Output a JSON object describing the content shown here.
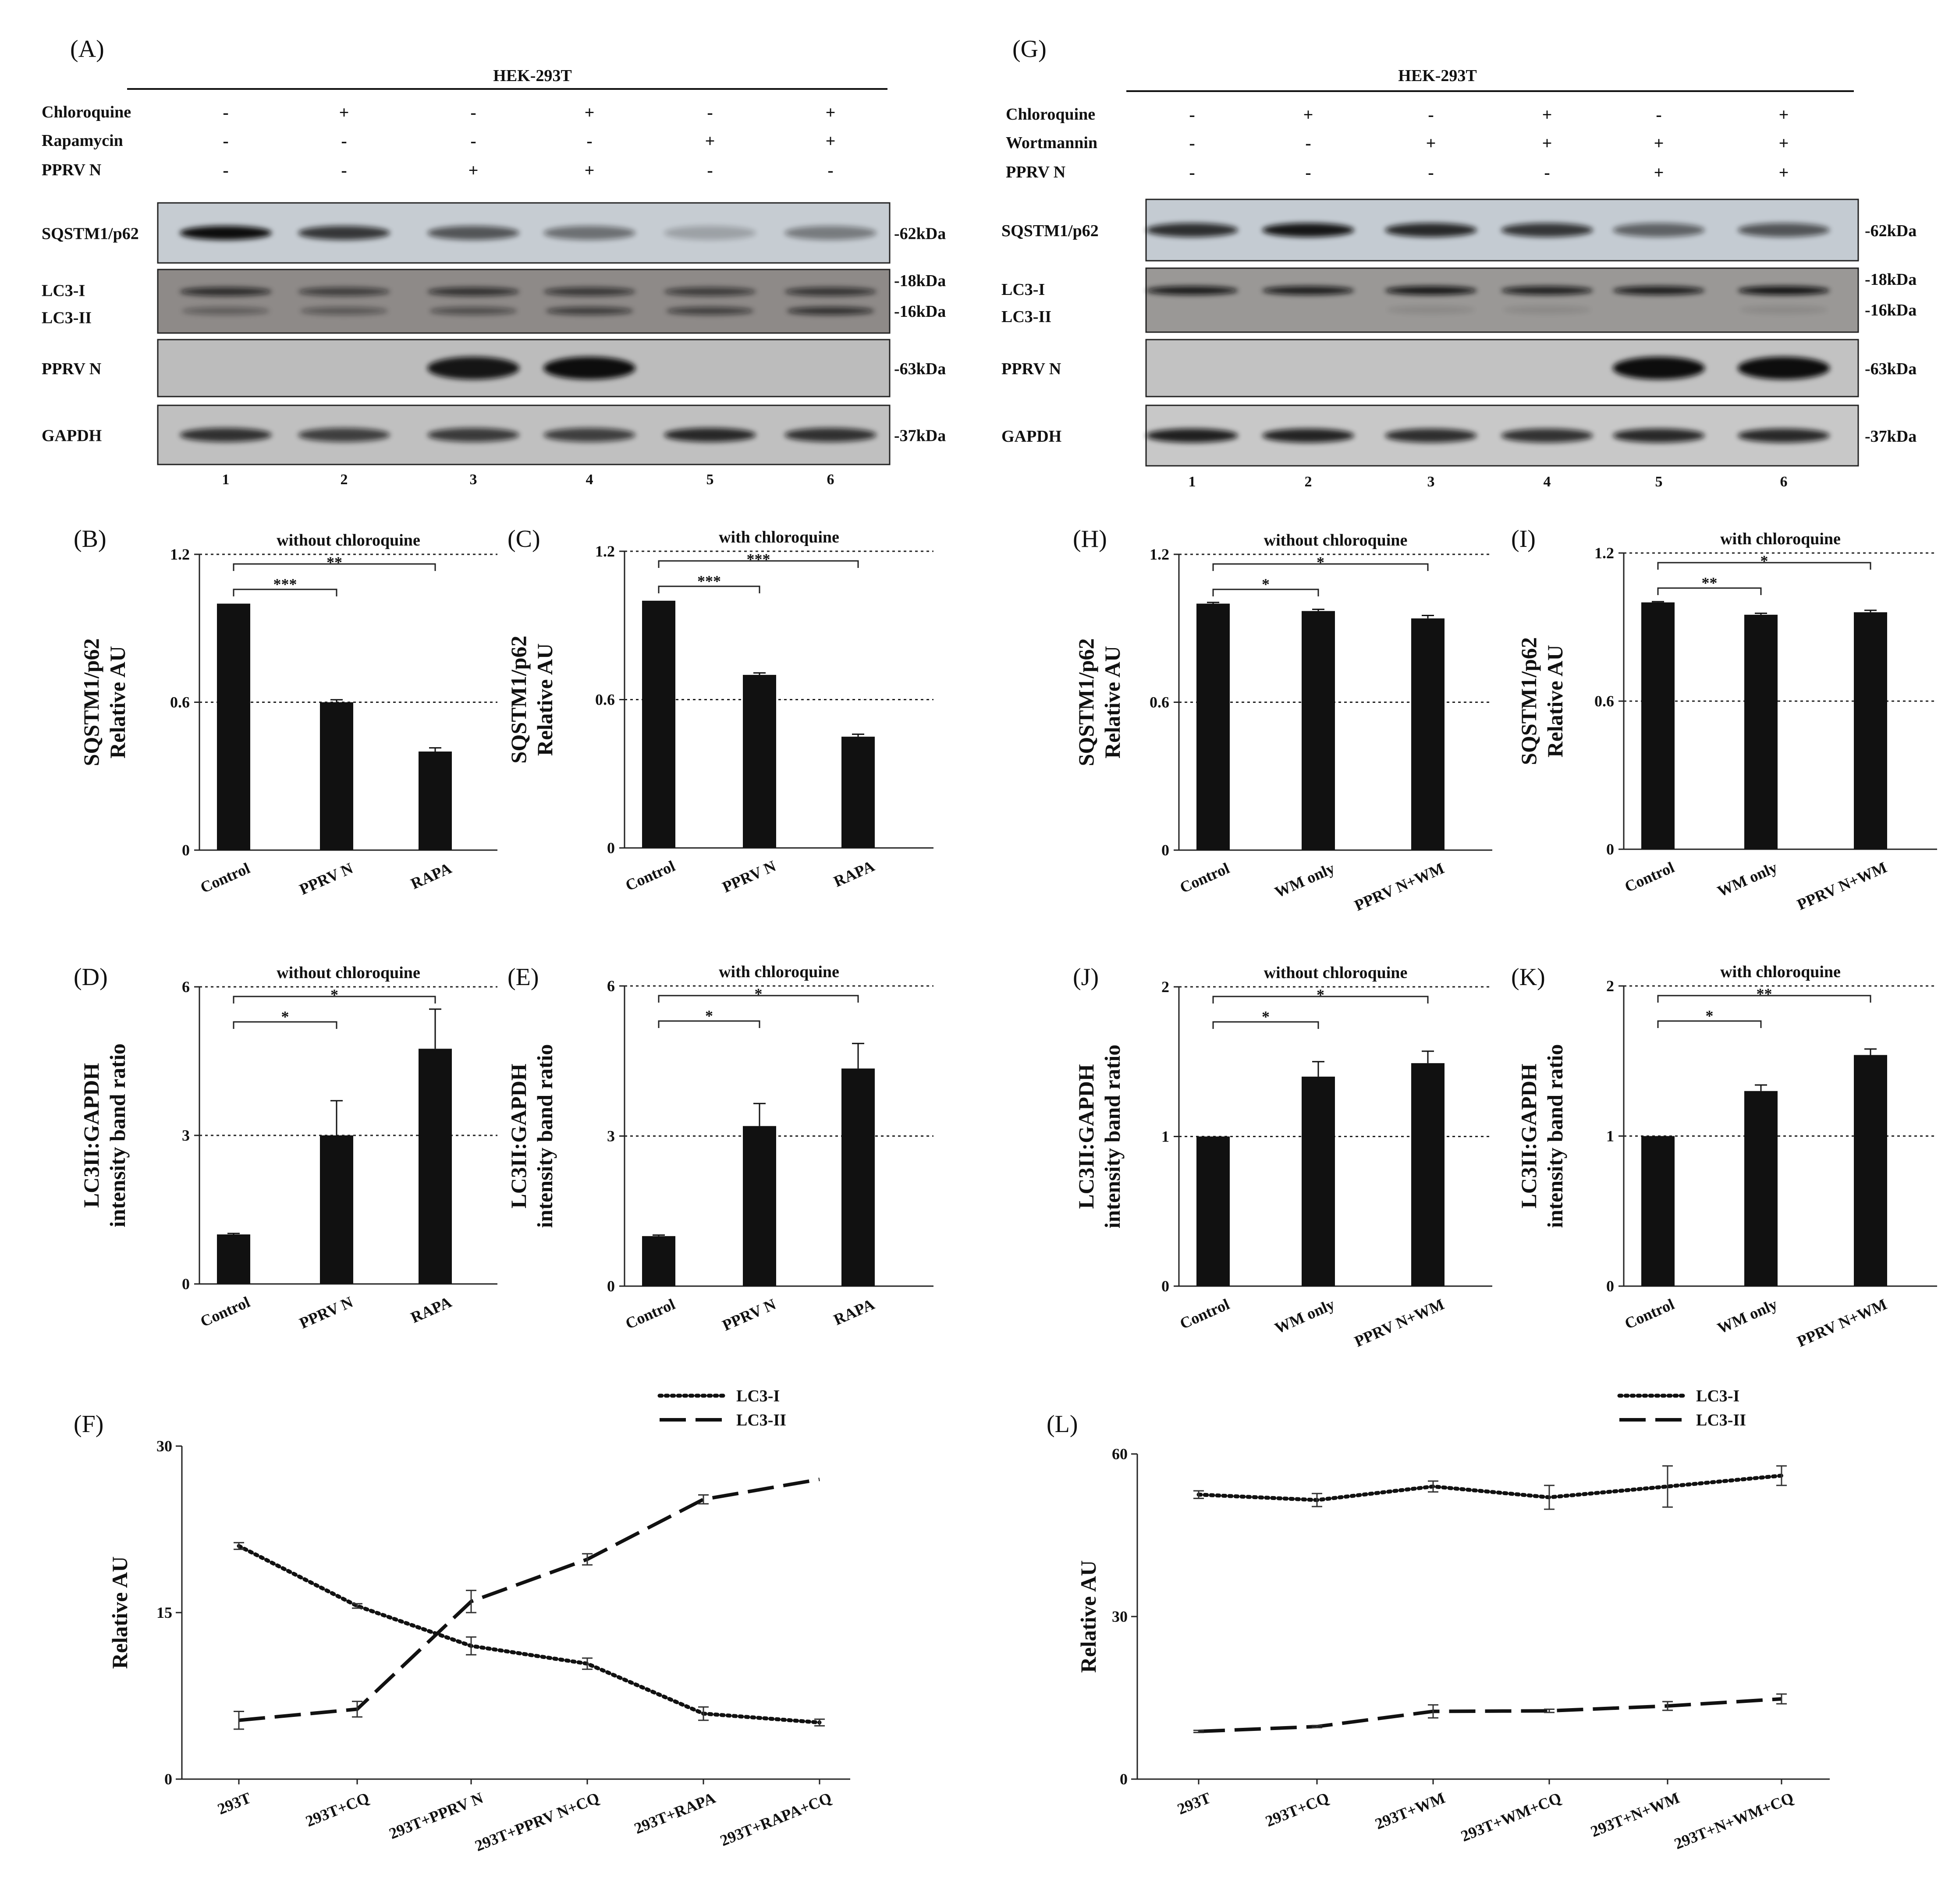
{
  "panels": {
    "A": "(A)",
    "B": "(B)",
    "C": "(C)",
    "D": "(D)",
    "E": "(E)",
    "F": "(F)",
    "G": "(G)",
    "H": "(H)",
    "I": "(I)",
    "J": "(J)",
    "K": "(K)",
    "L": "(L)"
  },
  "blot_left": {
    "cell_line": "HEK-293T",
    "treatments": [
      {
        "label": "Chloroquine",
        "signs": [
          "-",
          "+",
          "-",
          "+",
          "-",
          "+"
        ]
      },
      {
        "label": "Rapamycin",
        "signs": [
          "-",
          "-",
          "-",
          "-",
          "+",
          "+"
        ]
      },
      {
        "label": "PPRV N",
        "signs": [
          "-",
          "-",
          "+",
          "+",
          "-",
          "-"
        ]
      }
    ],
    "rows": [
      {
        "labels": [
          "SQSTM1/p62"
        ],
        "sizes": [
          "-62kDa"
        ],
        "bands": [
          1.0,
          0.78,
          0.62,
          0.48,
          0.22,
          0.42
        ],
        "tint": "#c6ccd2"
      },
      {
        "labels": [
          "LC3-I",
          "LC3-II"
        ],
        "sizes": [
          "-18kDa",
          "-16kDa"
        ],
        "bands": [
          0.75,
          0.6,
          0.7,
          0.65,
          0.62,
          0.68
        ],
        "bands2": [
          0.35,
          0.4,
          0.48,
          0.62,
          0.6,
          0.72
        ],
        "tint": "#8e8a88"
      },
      {
        "labels": [
          "PPRV N"
        ],
        "sizes": [
          "-63kDa"
        ],
        "bands": [
          0,
          0,
          0.95,
          1.0,
          0,
          0
        ],
        "tint": "#bcbcbc"
      },
      {
        "labels": [
          "GAPDH"
        ],
        "sizes": [
          "-37kDa"
        ],
        "bands": [
          0.8,
          0.72,
          0.75,
          0.72,
          0.85,
          0.8
        ],
        "tint": "#c0c0c0"
      }
    ],
    "lanes": [
      "1",
      "2",
      "3",
      "4",
      "5",
      "6"
    ]
  },
  "blot_right": {
    "cell_line": "HEK-293T",
    "treatments": [
      {
        "label": "Chloroquine",
        "signs": [
          "-",
          "+",
          "-",
          "+",
          "-",
          "+"
        ]
      },
      {
        "label": "Wortmannin",
        "signs": [
          "-",
          "-",
          "+",
          "+",
          "+",
          "+"
        ]
      },
      {
        "label": "PPRV N",
        "signs": [
          "-",
          "-",
          "-",
          "-",
          "+",
          "+"
        ]
      }
    ],
    "rows": [
      {
        "labels": [
          "SQSTM1/p62"
        ],
        "sizes": [
          "-62kDa"
        ],
        "bands": [
          0.82,
          0.95,
          0.85,
          0.78,
          0.55,
          0.62
        ],
        "tint": "#c4cbd2"
      },
      {
        "labels": [
          "LC3-I",
          "LC3-II"
        ],
        "sizes": [
          "-18kDa",
          "-16kDa"
        ],
        "bands": [
          0.9,
          0.88,
          0.92,
          0.85,
          0.88,
          0.95
        ],
        "bands2": [
          0,
          0,
          0.1,
          0.1,
          0,
          0.1
        ],
        "tint": "#9a9896"
      },
      {
        "labels": [
          "PPRV N"
        ],
        "sizes": [
          "-63kDa"
        ],
        "bands": [
          0,
          0,
          0,
          0,
          1.0,
          1.0
        ],
        "tint": "#c2c2c2"
      },
      {
        "labels": [
          "GAPDH"
        ],
        "sizes": [
          "-37kDa"
        ],
        "bands": [
          0.9,
          0.88,
          0.82,
          0.8,
          0.85,
          0.85
        ],
        "tint": "#c8c8c8"
      }
    ],
    "lanes": [
      "1",
      "2",
      "3",
      "4",
      "5",
      "6"
    ]
  },
  "chart_data": [
    {
      "id": "B",
      "type": "bar",
      "title": "without chloroquine",
      "ylabel": [
        "SQSTM1/p62",
        "Relative AU"
      ],
      "ylim": [
        0,
        1.2
      ],
      "yticks": [
        "0",
        "0.6",
        "1.2"
      ],
      "ref_lines": [
        0.6,
        1.2
      ],
      "categories": [
        "Control",
        "PPRV N",
        "RAPA"
      ],
      "values": [
        1.0,
        0.6,
        0.4
      ],
      "errors": [
        0,
        0.01,
        0.015
      ],
      "significance": [
        {
          "from": 0,
          "to": 1,
          "label": "***"
        },
        {
          "from": 0,
          "to": 2,
          "label": "**"
        }
      ]
    },
    {
      "id": "C",
      "type": "bar",
      "title": "with chloroquine",
      "ylabel": [
        "SQSTM1/p62",
        "Relative AU"
      ],
      "ylim": [
        0,
        1.2
      ],
      "yticks": [
        "0",
        "0.6",
        "1.2"
      ],
      "ref_lines": [
        0.6,
        1.2
      ],
      "categories": [
        "Control",
        "PPRV N",
        "RAPA"
      ],
      "values": [
        1.0,
        0.7,
        0.45
      ],
      "errors": [
        0,
        0.008,
        0.01
      ],
      "significance": [
        {
          "from": 0,
          "to": 1,
          "label": "***"
        },
        {
          "from": 0,
          "to": 2,
          "label": "***"
        }
      ]
    },
    {
      "id": "D",
      "type": "bar",
      "title": "without chloroquine",
      "ylabel": [
        "LC3II:GAPDH",
        "intensity band ratio"
      ],
      "ylim": [
        0,
        6
      ],
      "yticks": [
        "0",
        "3",
        "6"
      ],
      "ref_lines": [
        3,
        6
      ],
      "categories": [
        "Control",
        "PPRV N",
        "RAPA"
      ],
      "values": [
        1.0,
        3.0,
        4.75
      ],
      "errors": [
        0.02,
        0.7,
        0.8
      ],
      "significance": [
        {
          "from": 0,
          "to": 1,
          "label": "*"
        },
        {
          "from": 0,
          "to": 2,
          "label": "*"
        }
      ]
    },
    {
      "id": "E",
      "type": "bar",
      "title": "with chloroquine",
      "ylabel": [
        "LC3II:GAPDH",
        "intensity band ratio"
      ],
      "ylim": [
        0,
        6
      ],
      "yticks": [
        "0",
        "3",
        "6"
      ],
      "ref_lines": [
        3,
        6
      ],
      "categories": [
        "Control",
        "PPRV N",
        "RAPA"
      ],
      "values": [
        1.0,
        3.2,
        4.35
      ],
      "errors": [
        0.02,
        0.45,
        0.5
      ],
      "significance": [
        {
          "from": 0,
          "to": 1,
          "label": "*"
        },
        {
          "from": 0,
          "to": 2,
          "label": "*"
        }
      ]
    },
    {
      "id": "H",
      "type": "bar",
      "title": "without chloroquine",
      "ylabel": [
        "SQSTM1/p62",
        "Relative AU"
      ],
      "ylim": [
        0,
        1.2
      ],
      "yticks": [
        "0",
        "0.6",
        "1.2"
      ],
      "ref_lines": [
        0.6,
        1.2
      ],
      "categories": [
        "Control",
        "WM only",
        "PPRV N+WM"
      ],
      "values": [
        1.0,
        0.97,
        0.94
      ],
      "errors": [
        0.005,
        0.007,
        0.012
      ],
      "significance": [
        {
          "from": 0,
          "to": 1,
          "label": "*"
        },
        {
          "from": 0,
          "to": 2,
          "label": "*"
        }
      ]
    },
    {
      "id": "I",
      "type": "bar",
      "title": "with chloroquine",
      "ylabel": [
        "SQSTM1/p62",
        "Relative AU"
      ],
      "ylim": [
        0,
        1.2
      ],
      "yticks": [
        "0",
        "0.6",
        "1.2"
      ],
      "ref_lines": [
        0.6,
        1.2
      ],
      "categories": [
        "Control",
        "WM only",
        "PPRV N+WM"
      ],
      "values": [
        1.0,
        0.95,
        0.96
      ],
      "errors": [
        0.003,
        0.006,
        0.008
      ],
      "significance": [
        {
          "from": 0,
          "to": 1,
          "label": "**"
        },
        {
          "from": 0,
          "to": 2,
          "label": "*"
        }
      ]
    },
    {
      "id": "J",
      "type": "bar",
      "title": "without chloroquine",
      "ylabel": [
        "LC3II:GAPDH",
        "intensity band ratio"
      ],
      "ylim": [
        0,
        2
      ],
      "yticks": [
        "0",
        "1",
        "2"
      ],
      "ref_lines": [
        1,
        2
      ],
      "categories": [
        "Control",
        "WM only",
        "PPRV N+WM"
      ],
      "values": [
        1.0,
        1.4,
        1.49
      ],
      "errors": [
        0,
        0.1,
        0.08
      ],
      "significance": [
        {
          "from": 0,
          "to": 1,
          "label": "*"
        },
        {
          "from": 0,
          "to": 2,
          "label": "*"
        }
      ]
    },
    {
      "id": "K",
      "type": "bar",
      "title": "with chloroquine",
      "ylabel": [
        "LC3II:GAPDH",
        "intensity band ratio"
      ],
      "ylim": [
        0,
        2
      ],
      "yticks": [
        "0",
        "1",
        "2"
      ],
      "ref_lines": [
        1,
        2
      ],
      "categories": [
        "Control",
        "WM only",
        "PPRV N+WM"
      ],
      "values": [
        1.0,
        1.3,
        1.54
      ],
      "errors": [
        0,
        0.04,
        0.04
      ],
      "significance": [
        {
          "from": 0,
          "to": 1,
          "label": "*"
        },
        {
          "from": 0,
          "to": 2,
          "label": "**"
        }
      ]
    },
    {
      "id": "F",
      "type": "line",
      "ylabel": "Relative AU",
      "ylim": [
        0,
        30
      ],
      "yticks": [
        "0",
        "15",
        "30"
      ],
      "categories": [
        "293T",
        "293T+CQ",
        "293T+PPRV N",
        "293T+PPRV N+CQ",
        "293T+RAPA",
        "293T+RAPA+CQ"
      ],
      "series": [
        {
          "name": "LC3-I",
          "style": "dotted",
          "values": [
            21,
            15.6,
            12,
            10.4,
            5.9,
            5.1
          ],
          "errors": [
            0.3,
            0.2,
            0.8,
            0.5,
            0.6,
            0.3
          ]
        },
        {
          "name": "LC3-II",
          "style": "dashed",
          "values": [
            5.3,
            6.3,
            16,
            19.8,
            25.2,
            27
          ],
          "errors": [
            0.8,
            0.7,
            1.0,
            0.5,
            0.4,
            0
          ]
        }
      ]
    },
    {
      "id": "L",
      "type": "line",
      "ylabel": "Relative AU",
      "ylim": [
        0,
        60
      ],
      "yticks": [
        "0",
        "30",
        "60"
      ],
      "categories": [
        "293T",
        "293T+CQ",
        "293T+WM",
        "293T+WM+CQ",
        "293T+N+WM",
        "293T+N+WM+CQ"
      ],
      "series": [
        {
          "name": "LC3-I",
          "style": "dotted",
          "values": [
            52.5,
            51.5,
            54,
            52,
            54,
            56
          ],
          "errors": [
            0.7,
            1.2,
            1.0,
            2.2,
            3.8,
            1.8
          ]
        },
        {
          "name": "LC3-II",
          "style": "dashed",
          "values": [
            8.8,
            9.7,
            12.5,
            12.6,
            13.5,
            14.8
          ],
          "errors": [
            0.2,
            0.2,
            1.2,
            0.3,
            0.8,
            0.9
          ]
        }
      ]
    }
  ]
}
